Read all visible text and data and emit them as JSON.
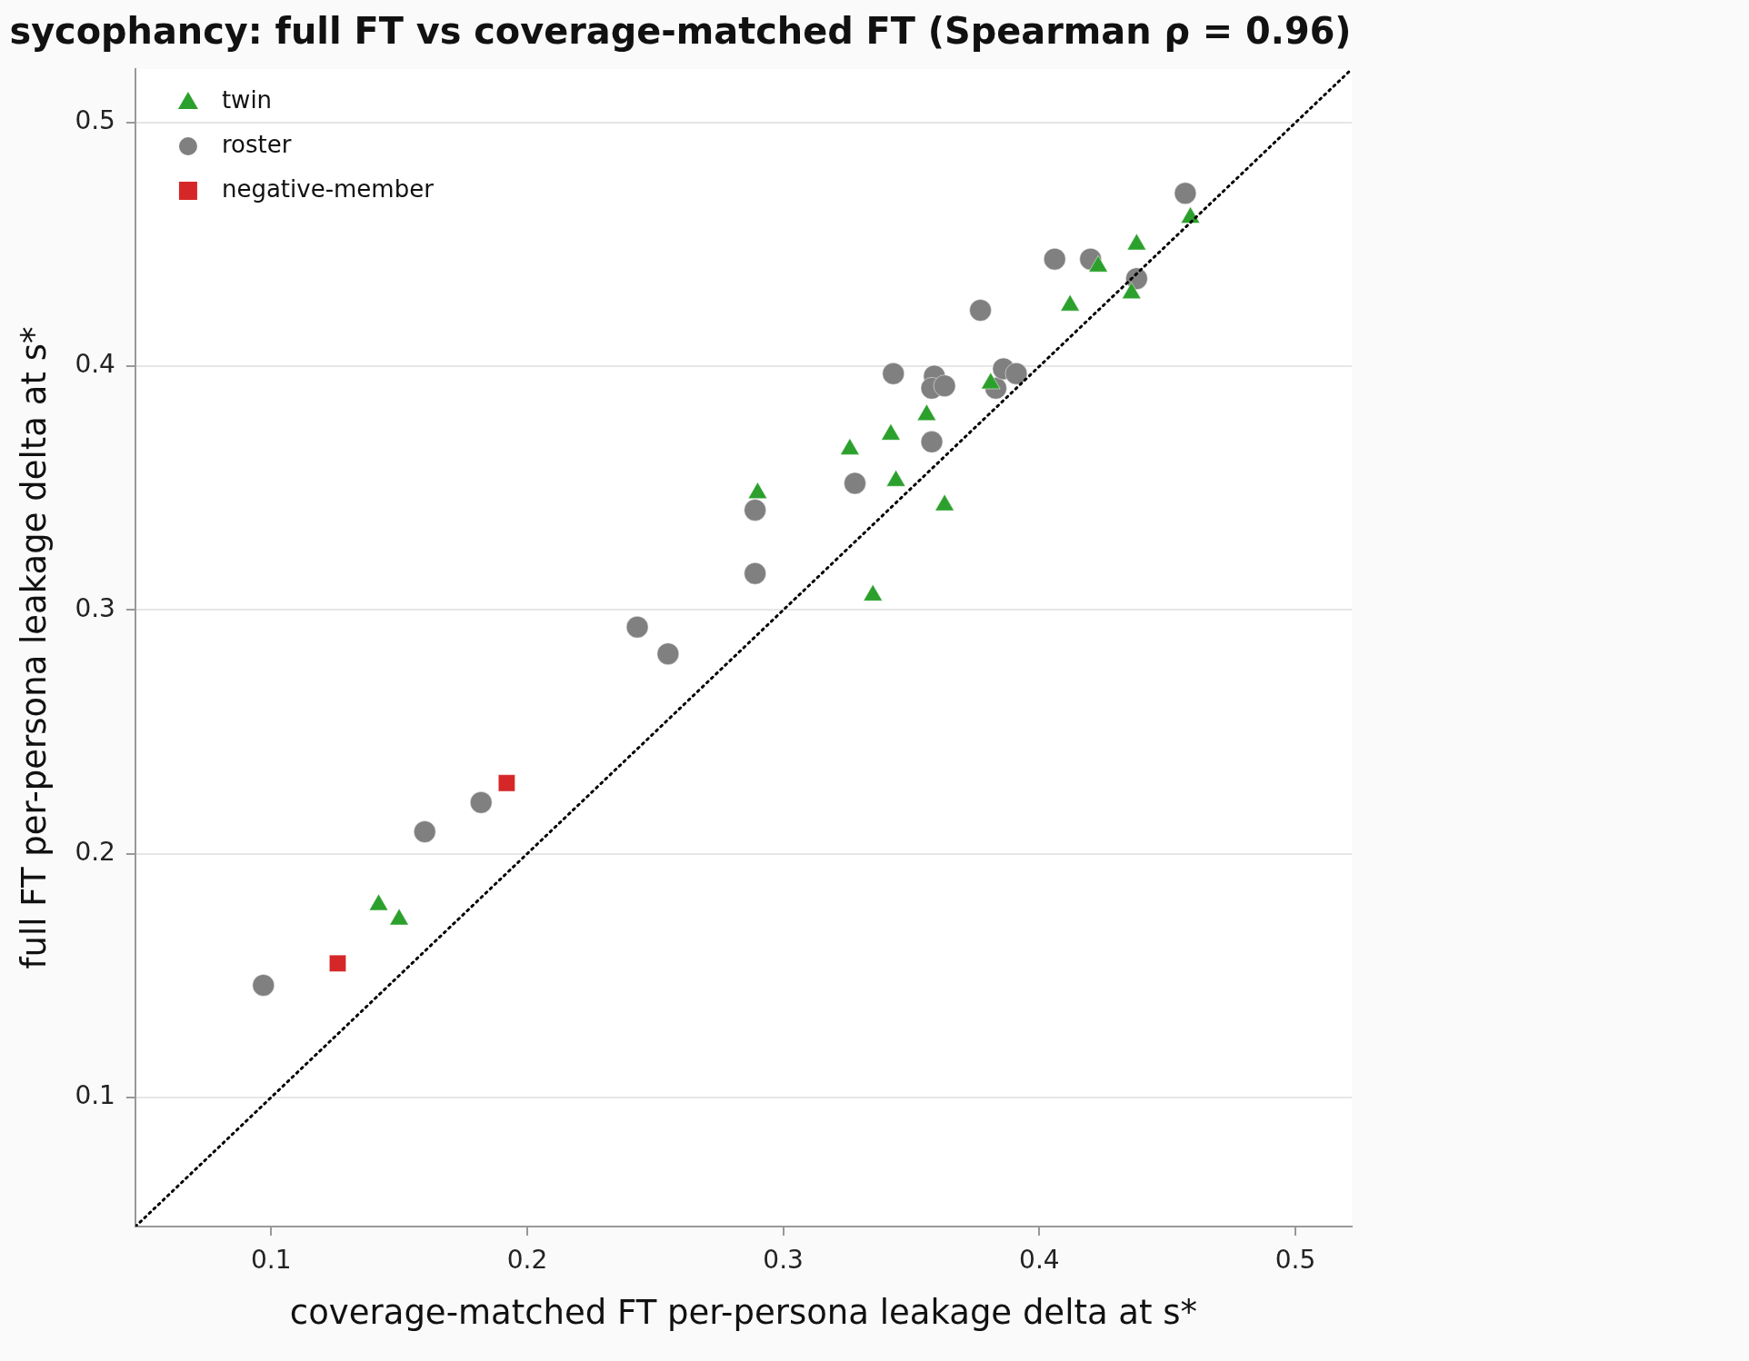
{
  "chart_data": {
    "type": "scatter",
    "title": "sycophancy: full FT vs coverage-matched FT (Spearman ρ = 0.96)",
    "xlabel": "coverage-matched FT per-persona leakage delta at s*",
    "ylabel": "full FT per-persona leakage delta at s*",
    "xlim": [
      0.047,
      0.522
    ],
    "ylim": [
      0.047,
      0.522
    ],
    "xticks": [
      0.1,
      0.2,
      0.3,
      0.4,
      0.5
    ],
    "yticks": [
      0.1,
      0.2,
      0.3,
      0.4,
      0.5
    ],
    "grid": "y",
    "legend": "top left",
    "series": [
      {
        "name": "twin",
        "color": "#2ca02c",
        "marker": "triangle",
        "x": [
          0.142,
          0.15,
          0.29,
          0.326,
          0.335,
          0.342,
          0.344,
          0.356,
          0.363,
          0.381,
          0.412,
          0.423,
          0.436,
          0.438,
          0.459
        ],
        "values": [
          0.179,
          0.173,
          0.348,
          0.366,
          0.306,
          0.372,
          0.353,
          0.38,
          0.343,
          0.393,
          0.425,
          0.441,
          0.43,
          0.45,
          0.461
        ]
      },
      {
        "name": "roster",
        "color": "#808080",
        "marker": "circle",
        "x": [
          0.097,
          0.16,
          0.182,
          0.243,
          0.255,
          0.289,
          0.289,
          0.328,
          0.343,
          0.358,
          0.359,
          0.358,
          0.363,
          0.377,
          0.383,
          0.386,
          0.391,
          0.406,
          0.42,
          0.438,
          0.457
        ],
        "values": [
          0.146,
          0.209,
          0.221,
          0.293,
          0.282,
          0.341,
          0.315,
          0.352,
          0.397,
          0.369,
          0.396,
          0.391,
          0.392,
          0.423,
          0.391,
          0.399,
          0.397,
          0.444,
          0.444,
          0.436,
          0.471
        ]
      },
      {
        "name": "negative-member",
        "color": "#d62728",
        "marker": "square",
        "x": [
          0.126,
          0.192
        ],
        "values": [
          0.155,
          0.229
        ]
      },
      {
        "type": "line",
        "color": "#000000",
        "line_style": "dotted",
        "marker": "none",
        "x": [
          0.047,
          0.522
        ],
        "values": [
          0.047,
          0.522
        ]
      }
    ]
  }
}
